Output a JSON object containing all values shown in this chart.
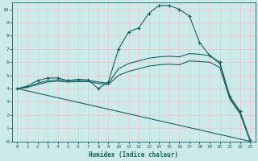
{
  "xlabel": "Humidex (Indice chaleur)",
  "xlim": [
    -0.5,
    23.5
  ],
  "ylim": [
    0,
    10.5
  ],
  "xticks": [
    0,
    1,
    2,
    3,
    4,
    5,
    6,
    7,
    8,
    9,
    10,
    11,
    12,
    13,
    14,
    15,
    16,
    17,
    18,
    19,
    20,
    21,
    22,
    23
  ],
  "yticks": [
    0,
    1,
    2,
    3,
    4,
    5,
    6,
    7,
    8,
    9,
    10
  ],
  "bg_color": "#cceaea",
  "grid_major_color": "#e8c8c8",
  "line_color": "#1a6060",
  "lines": [
    {
      "x": [
        0,
        1,
        2,
        3,
        4,
        5,
        6,
        7,
        8,
        9,
        10,
        11,
        12,
        13,
        14,
        15,
        16,
        17,
        18,
        19,
        20,
        21,
        22,
        23
      ],
      "y": [
        4.0,
        4.2,
        4.6,
        4.8,
        4.8,
        4.6,
        4.7,
        4.65,
        4.0,
        4.5,
        7.0,
        8.3,
        8.6,
        9.7,
        10.3,
        10.3,
        10.0,
        9.5,
        7.5,
        6.5,
        6.0,
        3.4,
        2.3,
        0.1
      ],
      "marker": "+"
    },
    {
      "x": [
        0,
        1,
        2,
        3,
        4,
        5,
        6,
        7,
        8,
        9,
        10,
        11,
        12,
        13,
        14,
        15,
        16,
        17,
        18,
        19,
        20,
        21,
        22,
        23
      ],
      "y": [
        4.0,
        4.1,
        4.4,
        4.6,
        4.65,
        4.6,
        4.62,
        4.62,
        4.5,
        4.4,
        5.5,
        5.9,
        6.1,
        6.3,
        6.4,
        6.45,
        6.4,
        6.65,
        6.6,
        6.5,
        5.9,
        3.3,
        2.2,
        0.05
      ],
      "marker": null
    },
    {
      "x": [
        0,
        1,
        2,
        3,
        4,
        5,
        6,
        7,
        8,
        9,
        10,
        11,
        12,
        13,
        14,
        15,
        16,
        17,
        18,
        19,
        20,
        21,
        22,
        23
      ],
      "y": [
        4.0,
        4.1,
        4.3,
        4.5,
        4.55,
        4.5,
        4.52,
        4.52,
        4.4,
        4.3,
        5.0,
        5.3,
        5.5,
        5.7,
        5.8,
        5.85,
        5.8,
        6.1,
        6.05,
        6.0,
        5.6,
        3.2,
        2.1,
        0.03
      ],
      "marker": null
    },
    {
      "x": [
        0,
        23
      ],
      "y": [
        4.0,
        0.0
      ],
      "marker": null
    }
  ]
}
